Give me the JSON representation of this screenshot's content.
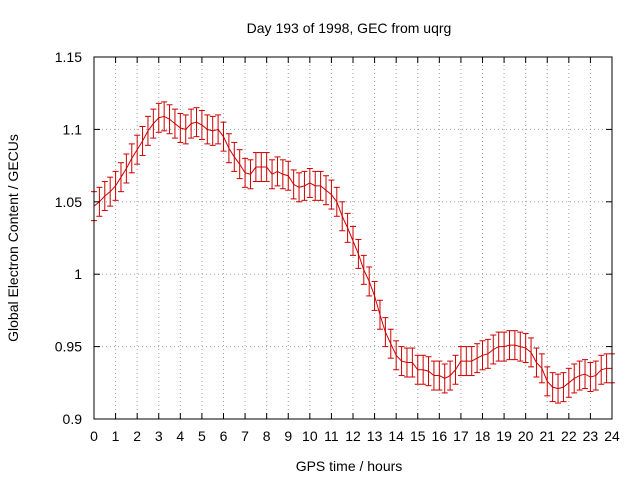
{
  "chart_data": {
    "type": "line",
    "title": "Day 193 of 1998, GEC from uqrg",
    "xlabel": "GPS time / hours",
    "ylabel": "Global Electron Content / GECUs",
    "xlim": [
      0,
      24
    ],
    "ylim": [
      0.9,
      1.15
    ],
    "grid": true,
    "x_ticks": [
      0,
      1,
      2,
      3,
      4,
      5,
      6,
      7,
      8,
      9,
      10,
      11,
      12,
      13,
      14,
      15,
      16,
      17,
      18,
      19,
      20,
      21,
      22,
      23,
      24
    ],
    "x_tick_labels": [
      "0",
      "1",
      "2",
      "3",
      "4",
      "5",
      "6",
      "7",
      "8",
      "9",
      "10",
      "11",
      "12",
      "13",
      "14",
      "15",
      "16",
      "17",
      "18",
      "19",
      "20",
      "21",
      "22",
      "23",
      "24"
    ],
    "y_ticks": [
      0.9,
      0.95,
      1.0,
      1.05,
      1.1,
      1.15
    ],
    "y_tick_labels": [
      "0.9",
      "0.95",
      "1",
      "1.05",
      "1.1",
      "1.15"
    ],
    "error": 0.01,
    "series": [
      {
        "name": "GEC",
        "color": "#cc0000",
        "x": [
          0.0,
          0.25,
          0.5,
          0.75,
          1.0,
          1.25,
          1.5,
          1.75,
          2.0,
          2.25,
          2.5,
          2.75,
          3.0,
          3.25,
          3.5,
          3.75,
          4.0,
          4.25,
          4.5,
          4.75,
          5.0,
          5.25,
          5.5,
          5.75,
          6.0,
          6.25,
          6.5,
          6.75,
          7.0,
          7.25,
          7.5,
          7.75,
          8.0,
          8.25,
          8.5,
          8.75,
          9.0,
          9.25,
          9.5,
          9.75,
          10.0,
          10.25,
          10.5,
          10.75,
          11.0,
          11.25,
          11.5,
          11.75,
          12.0,
          12.25,
          12.5,
          12.75,
          13.0,
          13.25,
          13.5,
          13.75,
          14.0,
          14.25,
          14.5,
          14.75,
          15.0,
          15.25,
          15.5,
          15.75,
          16.0,
          16.25,
          16.5,
          16.75,
          17.0,
          17.25,
          17.5,
          17.75,
          18.0,
          18.25,
          18.5,
          18.75,
          19.0,
          19.25,
          19.5,
          19.75,
          20.0,
          20.25,
          20.5,
          20.75,
          21.0,
          21.25,
          21.5,
          21.75,
          22.0,
          22.25,
          22.5,
          22.75,
          23.0,
          23.25,
          23.5,
          23.75,
          24.0
        ],
        "values": [
          1.047,
          1.05,
          1.054,
          1.057,
          1.061,
          1.067,
          1.073,
          1.08,
          1.086,
          1.092,
          1.099,
          1.104,
          1.108,
          1.109,
          1.107,
          1.104,
          1.101,
          1.1,
          1.104,
          1.105,
          1.103,
          1.1,
          1.099,
          1.1,
          1.095,
          1.087,
          1.081,
          1.076,
          1.07,
          1.069,
          1.074,
          1.074,
          1.074,
          1.069,
          1.071,
          1.069,
          1.068,
          1.062,
          1.06,
          1.061,
          1.063,
          1.061,
          1.061,
          1.058,
          1.055,
          1.05,
          1.04,
          1.032,
          1.023,
          1.014,
          1.003,
          0.995,
          0.985,
          0.972,
          0.96,
          0.952,
          0.944,
          0.94,
          0.939,
          0.939,
          0.934,
          0.934,
          0.933,
          0.93,
          0.93,
          0.928,
          0.93,
          0.934,
          0.94,
          0.94,
          0.94,
          0.942,
          0.944,
          0.945,
          0.948,
          0.95,
          0.95,
          0.951,
          0.951,
          0.95,
          0.949,
          0.946,
          0.939,
          0.935,
          0.926,
          0.922,
          0.921,
          0.922,
          0.925,
          0.928,
          0.93,
          0.931,
          0.929,
          0.93,
          0.934,
          0.935,
          0.935
        ]
      }
    ]
  }
}
